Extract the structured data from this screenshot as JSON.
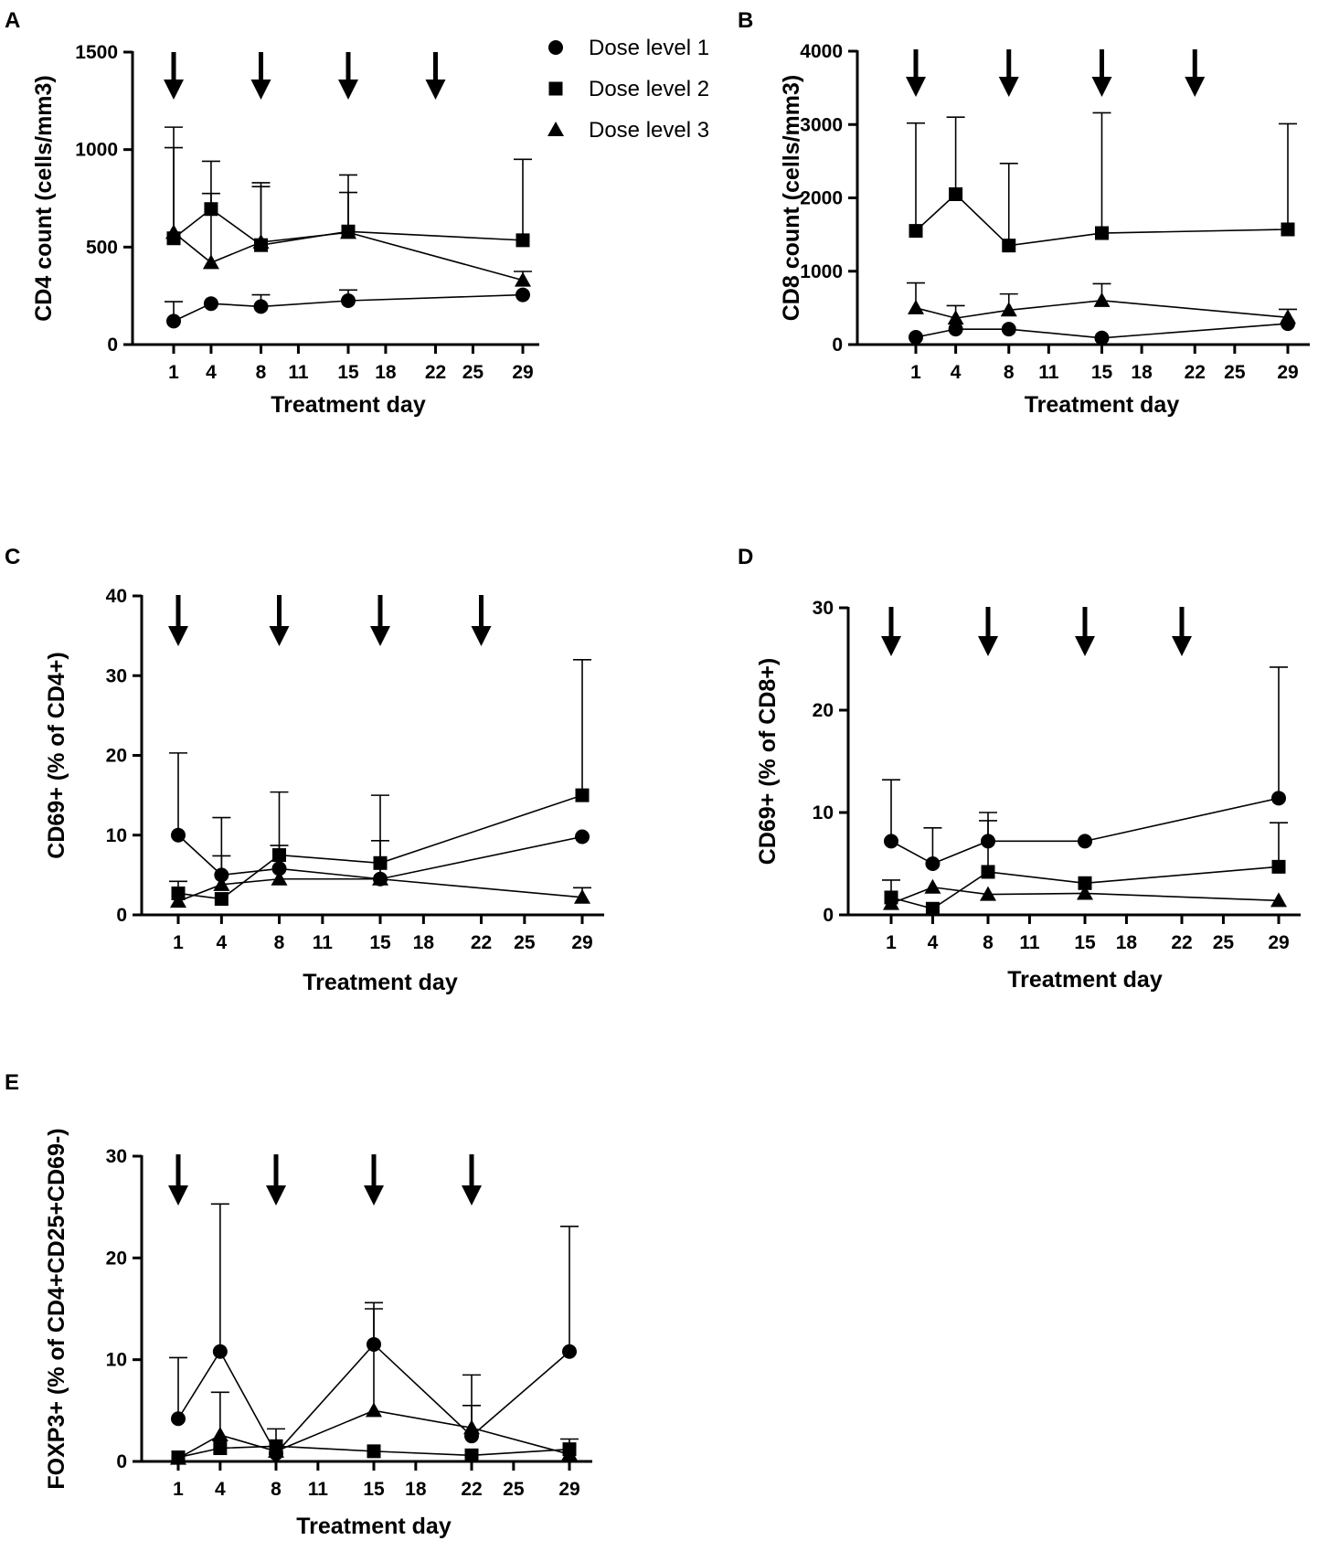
{
  "figure": {
    "legend": [
      "Dose level 1",
      "Dose level 2",
      "Dose level 3"
    ],
    "legend_position": "top-right of panel A"
  },
  "chart_data": [
    {
      "panel": "A",
      "type": "line",
      "xlabel": "Treatment day",
      "ylabel": "CD4 count (cells/mm3)",
      "xticks": [
        1,
        4,
        8,
        11,
        15,
        18,
        22,
        25,
        29
      ],
      "xlim": [
        -1.5,
        30
      ],
      "yticks": [
        0,
        500,
        1000,
        1500
      ],
      "ylim": [
        0,
        1500
      ],
      "arrow_days": [
        1,
        8,
        15,
        22
      ],
      "series": [
        {
          "name": "Dose level 1",
          "marker": "circle",
          "points": [
            {
              "x": 1,
              "y": 120,
              "err": 100
            },
            {
              "x": 4,
              "y": 210,
              "err": 0
            },
            {
              "x": 8,
              "y": 195,
              "err": 60
            },
            {
              "x": 15,
              "y": 225,
              "err": 55
            },
            {
              "x": 29,
              "y": 255,
              "err": 0
            }
          ]
        },
        {
          "name": "Dose level 2",
          "marker": "square",
          "points": [
            {
              "x": 1,
              "y": 545,
              "err": 570
            },
            {
              "x": 4,
              "y": 695,
              "err": 245
            },
            {
              "x": 8,
              "y": 510,
              "err": 320
            },
            {
              "x": 15,
              "y": 580,
              "err": 290
            },
            {
              "x": 29,
              "y": 535,
              "err": 415
            }
          ]
        },
        {
          "name": "Dose level 3",
          "marker": "triangle",
          "points": [
            {
              "x": 1,
              "y": 575,
              "err": 435
            },
            {
              "x": 4,
              "y": 420,
              "err": 355
            },
            {
              "x": 8,
              "y": 525,
              "err": 285
            },
            {
              "x": 15,
              "y": 575,
              "err": 205
            },
            {
              "x": 29,
              "y": 330,
              "err": 45
            }
          ]
        }
      ]
    },
    {
      "panel": "B",
      "type": "line",
      "xlabel": "Treatment day",
      "ylabel": "CD8 count (cells/mm3)",
      "xticks": [
        1,
        4,
        8,
        11,
        15,
        18,
        22,
        25,
        29
      ],
      "xlim": [
        -1.5,
        30
      ],
      "yticks": [
        0,
        1000,
        2000,
        3000,
        4000
      ],
      "ylim": [
        0,
        4000
      ],
      "arrow_days": [
        1,
        8,
        15,
        22
      ],
      "series": [
        {
          "name": "Dose level 1",
          "marker": "circle",
          "points": [
            {
              "x": 1,
              "y": 100,
              "err": 0
            },
            {
              "x": 4,
              "y": 210,
              "err": 0
            },
            {
              "x": 8,
              "y": 210,
              "err": 0
            },
            {
              "x": 15,
              "y": 90,
              "err": 0
            },
            {
              "x": 29,
              "y": 285,
              "err": 0
            }
          ]
        },
        {
          "name": "Dose level 2",
          "marker": "square",
          "points": [
            {
              "x": 1,
              "y": 1550,
              "err": 1470
            },
            {
              "x": 4,
              "y": 2050,
              "err": 1050
            },
            {
              "x": 8,
              "y": 1350,
              "err": 1120
            },
            {
              "x": 15,
              "y": 1520,
              "err": 1640
            },
            {
              "x": 29,
              "y": 1570,
              "err": 1440
            }
          ]
        },
        {
          "name": "Dose level 3",
          "marker": "triangle",
          "points": [
            {
              "x": 1,
              "y": 500,
              "err": 340
            },
            {
              "x": 4,
              "y": 360,
              "err": 170
            },
            {
              "x": 8,
              "y": 470,
              "err": 220
            },
            {
              "x": 15,
              "y": 600,
              "err": 230
            },
            {
              "x": 29,
              "y": 370,
              "err": 110
            }
          ]
        }
      ]
    },
    {
      "panel": "C",
      "type": "line",
      "xlabel": "Treatment day",
      "ylabel": "CD69+ (% of CD4+)",
      "xticks": [
        1,
        4,
        8,
        11,
        15,
        18,
        22,
        25,
        29
      ],
      "xlim": [
        -1.5,
        30
      ],
      "yticks": [
        0,
        10,
        20,
        30,
        40
      ],
      "ylim": [
        0,
        40
      ],
      "arrow_days": [
        1,
        8,
        15,
        22
      ],
      "series": [
        {
          "name": "Dose level 1",
          "marker": "circle",
          "points": [
            {
              "x": 1,
              "y": 10,
              "err": 10.3
            },
            {
              "x": 4,
              "y": 5,
              "err": 7.2
            },
            {
              "x": 8,
              "y": 5.8,
              "err": 9.6
            },
            {
              "x": 15,
              "y": 4.5,
              "err": 10.5
            },
            {
              "x": 29,
              "y": 9.8,
              "err": 0
            }
          ]
        },
        {
          "name": "Dose level 2",
          "marker": "square",
          "points": [
            {
              "x": 1,
              "y": 2.7,
              "err": 1.5
            },
            {
              "x": 4,
              "y": 2,
              "err": 0
            },
            {
              "x": 8,
              "y": 7.5,
              "err": 0
            },
            {
              "x": 15,
              "y": 6.5,
              "err": 2.8
            },
            {
              "x": 29,
              "y": 15,
              "err": 17
            }
          ]
        },
        {
          "name": "Dose level 3",
          "marker": "triangle",
          "points": [
            {
              "x": 1,
              "y": 1.7,
              "err": 0
            },
            {
              "x": 4,
              "y": 3.8,
              "err": 3.6
            },
            {
              "x": 8,
              "y": 4.5,
              "err": 4.2
            },
            {
              "x": 15,
              "y": 4.5,
              "err": 0
            },
            {
              "x": 29,
              "y": 2.2,
              "err": 1.2
            }
          ]
        }
      ]
    },
    {
      "panel": "D",
      "type": "line",
      "xlabel": "Treatment day",
      "ylabel": "CD69+ (% of CD8+)",
      "xticks": [
        1,
        4,
        8,
        11,
        15,
        18,
        22,
        25,
        29
      ],
      "xlim": [
        -1.5,
        30
      ],
      "yticks": [
        0,
        10,
        20,
        30
      ],
      "ylim": [
        0,
        30
      ],
      "arrow_days": [
        1,
        8,
        15,
        22
      ],
      "series": [
        {
          "name": "Dose level 1",
          "marker": "circle",
          "points": [
            {
              "x": 1,
              "y": 7.2,
              "err": 6
            },
            {
              "x": 4,
              "y": 5,
              "err": 3.5
            },
            {
              "x": 8,
              "y": 7.2,
              "err": 2.8
            },
            {
              "x": 15,
              "y": 7.2,
              "err": 0
            },
            {
              "x": 29,
              "y": 11.4,
              "err": 12.8
            }
          ]
        },
        {
          "name": "Dose level 2",
          "marker": "square",
          "points": [
            {
              "x": 1,
              "y": 1.7,
              "err": 1.7
            },
            {
              "x": 4,
              "y": 0.6,
              "err": 0
            },
            {
              "x": 8,
              "y": 4.2,
              "err": 5
            },
            {
              "x": 15,
              "y": 3.1,
              "err": 0
            },
            {
              "x": 29,
              "y": 4.7,
              "err": 4.3
            }
          ]
        },
        {
          "name": "Dose level 3",
          "marker": "triangle",
          "points": [
            {
              "x": 1,
              "y": 1.1,
              "err": 0
            },
            {
              "x": 4,
              "y": 2.7,
              "err": 0
            },
            {
              "x": 8,
              "y": 2,
              "err": 0
            },
            {
              "x": 15,
              "y": 2.1,
              "err": 0
            },
            {
              "x": 29,
              "y": 1.4,
              "err": 0
            }
          ]
        }
      ]
    },
    {
      "panel": "E",
      "type": "line",
      "xlabel": "Treatment day",
      "ylabel": "FOXP3+ (% of CD4+CD25+CD69-)",
      "xticks": [
        1,
        4,
        8,
        11,
        15,
        18,
        22,
        25,
        29
      ],
      "xlim": [
        -1.5,
        30
      ],
      "yticks": [
        0,
        10,
        20,
        30
      ],
      "ylim": [
        0,
        30
      ],
      "arrow_days": [
        1,
        8,
        15,
        22
      ],
      "series": [
        {
          "name": "Dose level 1",
          "marker": "circle",
          "points": [
            {
              "x": 1,
              "y": 4.2,
              "err": 6
            },
            {
              "x": 4,
              "y": 10.8,
              "err": 14.5
            },
            {
              "x": 8,
              "y": 0.8,
              "err": 0
            },
            {
              "x": 15,
              "y": 11.5,
              "err": 4.1
            },
            {
              "x": 22,
              "y": 2.5,
              "err": 6
            },
            {
              "x": 29,
              "y": 10.8,
              "err": 12.3
            }
          ]
        },
        {
          "name": "Dose level 2",
          "marker": "square",
          "points": [
            {
              "x": 1,
              "y": 0.4,
              "err": 0
            },
            {
              "x": 4,
              "y": 1.3,
              "err": 0
            },
            {
              "x": 8,
              "y": 1.5,
              "err": 1.7
            },
            {
              "x": 15,
              "y": 1,
              "err": 0
            },
            {
              "x": 22,
              "y": 0.6,
              "err": 0
            },
            {
              "x": 29,
              "y": 1.2,
              "err": 1
            }
          ]
        },
        {
          "name": "Dose level 3",
          "marker": "triangle",
          "points": [
            {
              "x": 1,
              "y": 0.3,
              "err": 0
            },
            {
              "x": 4,
              "y": 2.6,
              "err": 4.2
            },
            {
              "x": 8,
              "y": 1,
              "err": 0
            },
            {
              "x": 15,
              "y": 5,
              "err": 10
            },
            {
              "x": 22,
              "y": 3.3,
              "err": 2.2
            },
            {
              "x": 29,
              "y": 0.7,
              "err": 0
            }
          ]
        }
      ]
    }
  ]
}
